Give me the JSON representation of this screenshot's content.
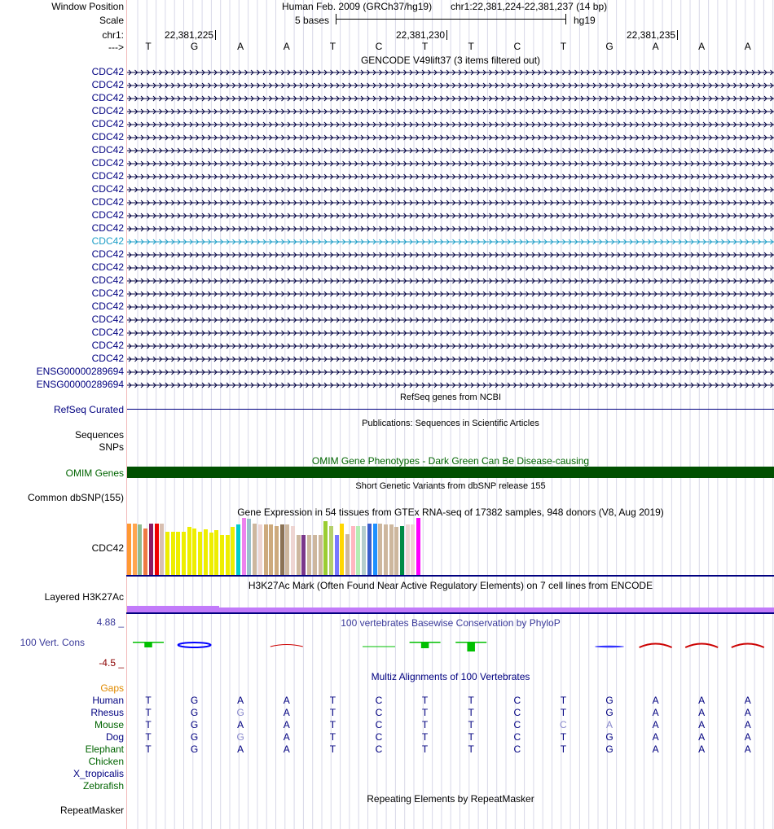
{
  "header": {
    "window_position_label": "Window Position",
    "scale_label": "Scale",
    "chrom_label": "chr1:",
    "arrow_label": "--->",
    "assembly": "Human Feb. 2009 (GRCh37/hg19)",
    "position": "chr1:22,381,224-22,381,237 (14 bp)",
    "scale_text": "5 bases",
    "db": "hg19",
    "ticks": [
      "22,381,225",
      "22,381,230",
      "22,381,235"
    ]
  },
  "bases": [
    "T",
    "G",
    "A",
    "A",
    "T",
    "C",
    "T",
    "T",
    "C",
    "T",
    "G",
    "A",
    "A",
    "A"
  ],
  "gencode": {
    "title": "GENCODE V49lift37 (3 items filtered out)",
    "labels": [
      "CDC42",
      "CDC42",
      "CDC42",
      "CDC42",
      "CDC42",
      "CDC42",
      "CDC42",
      "CDC42",
      "CDC42",
      "CDC42",
      "CDC42",
      "CDC42",
      "CDC42",
      "CDC42",
      "CDC42",
      "CDC42",
      "CDC42",
      "CDC42",
      "CDC42",
      "CDC42",
      "CDC42",
      "CDC42",
      "CDC42",
      "ENSG00000289694",
      "ENSG00000289694"
    ],
    "highlight_index": 13
  },
  "refseq": {
    "title": "RefSeq genes from NCBI",
    "label": "RefSeq Curated"
  },
  "publications": {
    "title": "Publications: Sequences in Scientific Articles",
    "label1": "Sequences",
    "label2": "SNPs"
  },
  "omim": {
    "title": "OMIM Gene Phenotypes - Dark Green Can Be Disease-causing",
    "label": "OMIM Genes",
    "color": "#005000"
  },
  "dbsnp": {
    "title": "Short Genetic Variants from dbSNP release 155",
    "label": "Common dbSNP(155)"
  },
  "gtex": {
    "title": "Gene Expression in 54 tissues from GTEx RNA-seq of 17382 samples, 948 donors (V8, Aug 2019)",
    "label": "CDC42",
    "bars": [
      {
        "h": 0.9,
        "c": "#ff9933"
      },
      {
        "h": 0.9,
        "c": "#ffa54f"
      },
      {
        "h": 0.88,
        "c": "#8fbc8f"
      },
      {
        "h": 0.82,
        "c": "#ee7942"
      },
      {
        "h": 0.9,
        "c": "#8b1c62"
      },
      {
        "h": 0.9,
        "c": "#ee0000"
      },
      {
        "h": 0.9,
        "c": "#d8bfb0"
      },
      {
        "h": 0.76,
        "c": "#eeee00"
      },
      {
        "h": 0.76,
        "c": "#eeee00"
      },
      {
        "h": 0.76,
        "c": "#eeee00"
      },
      {
        "h": 0.76,
        "c": "#eeee00"
      },
      {
        "h": 0.84,
        "c": "#eeee00"
      },
      {
        "h": 0.82,
        "c": "#eeee00"
      },
      {
        "h": 0.76,
        "c": "#eeee00"
      },
      {
        "h": 0.8,
        "c": "#eeee00"
      },
      {
        "h": 0.74,
        "c": "#eeee00"
      },
      {
        "h": 0.78,
        "c": "#eeee00"
      },
      {
        "h": 0.7,
        "c": "#eeee00"
      },
      {
        "h": 0.7,
        "c": "#eeee00"
      },
      {
        "h": 0.84,
        "c": "#eeee00"
      },
      {
        "h": 0.88,
        "c": "#00cdcd"
      },
      {
        "h": 1.0,
        "c": "#ee82ee"
      },
      {
        "h": 0.98,
        "c": "#9ac0cd"
      },
      {
        "h": 0.9,
        "c": "#cdb79e"
      },
      {
        "h": 0.88,
        "c": "#eed5d2"
      },
      {
        "h": 0.88,
        "c": "#cdaa7d"
      },
      {
        "h": 0.88,
        "c": "#cdaa7d"
      },
      {
        "h": 0.86,
        "c": "#cdaa7d"
      },
      {
        "h": 0.88,
        "c": "#8b7355"
      },
      {
        "h": 0.88,
        "c": "#cdb79e"
      },
      {
        "h": 0.86,
        "c": "#eed5d2"
      },
      {
        "h": 0.7,
        "c": "#cdb79e"
      },
      {
        "h": 0.7,
        "c": "#7a378b"
      },
      {
        "h": 0.7,
        "c": "#cdb79e"
      },
      {
        "h": 0.7,
        "c": "#cdb79e"
      },
      {
        "h": 0.7,
        "c": "#cdb79e"
      },
      {
        "h": 0.94,
        "c": "#9acd32"
      },
      {
        "h": 0.86,
        "c": "#b4cf6a"
      },
      {
        "h": 0.7,
        "c": "#7777ff"
      },
      {
        "h": 0.9,
        "c": "#ffd700"
      },
      {
        "h": 0.72,
        "c": "#cdb79e"
      },
      {
        "h": 0.86,
        "c": "#ffb6c1"
      },
      {
        "h": 0.86,
        "c": "#b4eeb4"
      },
      {
        "h": 0.86,
        "c": "#b4cdcd"
      },
      {
        "h": 0.9,
        "c": "#3a5fcd"
      },
      {
        "h": 0.9,
        "c": "#1e90ff"
      },
      {
        "h": 0.9,
        "c": "#cdb79e"
      },
      {
        "h": 0.88,
        "c": "#cdb79e"
      },
      {
        "h": 0.88,
        "c": "#cdb79e"
      },
      {
        "h": 0.84,
        "c": "#cdb79e"
      },
      {
        "h": 0.86,
        "c": "#008b45"
      },
      {
        "h": 0.88,
        "c": "#eed5d2"
      },
      {
        "h": 0.88,
        "c": "#eed5d2"
      },
      {
        "h": 1.0,
        "c": "#ff00ff"
      }
    ]
  },
  "h3k27ac": {
    "title": "H3K27Ac Mark (Often Found Near Active Regulatory Elements) on 7 cell lines from ENCODE",
    "label": "Layered H3K27Ac",
    "color": "#c27bfa"
  },
  "phylop": {
    "title": "100 vertebrates Basewise Conservation by PhyloP",
    "label": "100 Vert. Cons",
    "max": "4.88 _",
    "min": "-4.5 _"
  },
  "multiz": {
    "title": "Multiz Alignments of 100 Vertebrates",
    "gaps_label": "Gaps",
    "species": [
      {
        "name": "Human",
        "color": "#000080",
        "bases": [
          "T",
          "G",
          "A",
          "A",
          "T",
          "C",
          "T",
          "T",
          "C",
          "T",
          "G",
          "A",
          "A",
          "A"
        ],
        "faint": []
      },
      {
        "name": "Rhesus",
        "color": "#000080",
        "bases": [
          "T",
          "G",
          "G",
          "A",
          "T",
          "C",
          "T",
          "T",
          "C",
          "T",
          "G",
          "A",
          "A",
          "A"
        ],
        "faint": [
          2
        ]
      },
      {
        "name": "Mouse",
        "color": "#006400",
        "bases": [
          "T",
          "G",
          "A",
          "A",
          "T",
          "C",
          "T",
          "T",
          "C",
          "C",
          "A",
          "A",
          "A",
          "A"
        ],
        "faint": [
          9,
          10
        ]
      },
      {
        "name": "Dog",
        "color": "#000080",
        "bases": [
          "T",
          "G",
          "G",
          "A",
          "T",
          "C",
          "T",
          "T",
          "C",
          "T",
          "G",
          "A",
          "A",
          "A"
        ],
        "faint": [
          2
        ]
      },
      {
        "name": "Elephant",
        "color": "#006400",
        "bases": [
          "T",
          "G",
          "A",
          "A",
          "T",
          "C",
          "T",
          "T",
          "C",
          "T",
          "G",
          "A",
          "A",
          "A"
        ],
        "faint": []
      },
      {
        "name": "Chicken",
        "color": "#006400",
        "bases": [],
        "faint": []
      },
      {
        "name": "X_tropicalis",
        "color": "#000080",
        "bases": [],
        "faint": []
      },
      {
        "name": "Zebrafish",
        "color": "#006400",
        "bases": [],
        "faint": []
      }
    ]
  },
  "repeatmasker": {
    "title": "Repeating Elements by RepeatMasker",
    "label": "RepeatMasker"
  }
}
